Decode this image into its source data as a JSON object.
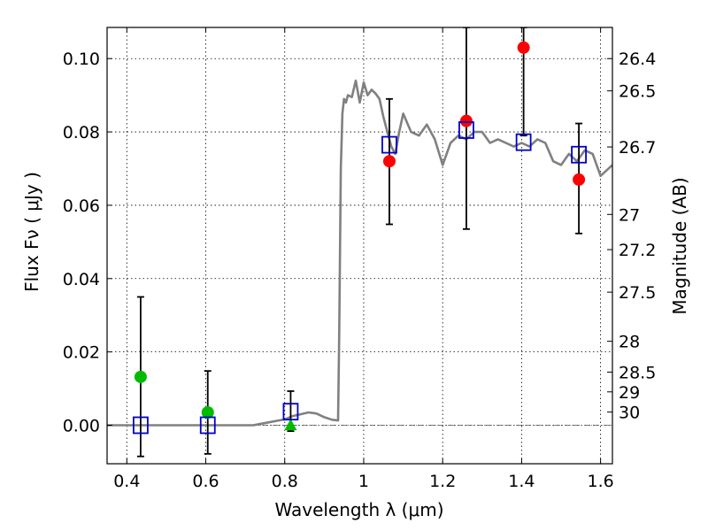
{
  "chart_data": {
    "type": "scatter",
    "xlabel": "Wavelength  λ (μm)",
    "ylabel": "Flux  Fν  ( μJy )",
    "y2label": "Magnitude (AB)",
    "xlim": [
      0.35,
      1.63
    ],
    "ylim": [
      -0.0105,
      0.1085
    ],
    "xticks": [
      0.4,
      0.6,
      0.8,
      1.0,
      1.2,
      1.4,
      1.6
    ],
    "xtick_labels": [
      "0.4",
      "0.6",
      "0.8",
      "1",
      "1.2",
      "1.4",
      "1.6"
    ],
    "yticks": [
      0.0,
      0.02,
      0.04,
      0.06,
      0.08,
      0.1
    ],
    "ytick_labels": [
      "0.00",
      "0.02",
      "0.04",
      "0.06",
      "0.08",
      "0.10"
    ],
    "y2ticks": [
      {
        "label": "26.4",
        "flux": 0.1
      },
      {
        "label": "26.5",
        "flux": 0.0912
      },
      {
        "label": "26.7",
        "flux": 0.0759
      },
      {
        "label": "27",
        "flux": 0.0575
      },
      {
        "label": "27.2",
        "flux": 0.0479
      },
      {
        "label": "27.5",
        "flux": 0.0363
      },
      {
        "label": "28",
        "flux": 0.0229
      },
      {
        "label": "28.5",
        "flux": 0.0145
      },
      {
        "label": "29",
        "flux": 0.0091
      },
      {
        "label": "30",
        "flux": 0.0036
      }
    ],
    "grid": true,
    "model_spectrum": {
      "color": "#808080",
      "x": [
        0.35,
        0.72,
        0.74,
        0.76,
        0.78,
        0.8,
        0.82,
        0.84,
        0.86,
        0.88,
        0.9,
        0.92,
        0.935,
        0.938,
        0.942,
        0.946,
        0.95,
        0.955,
        0.96,
        0.97,
        0.98,
        0.99,
        1.0,
        1.01,
        1.02,
        1.03,
        1.04,
        1.05,
        1.06,
        1.07,
        1.08,
        1.09,
        1.1,
        1.12,
        1.14,
        1.16,
        1.18,
        1.2,
        1.22,
        1.24,
        1.26,
        1.28,
        1.3,
        1.32,
        1.34,
        1.36,
        1.38,
        1.4,
        1.42,
        1.44,
        1.46,
        1.48,
        1.5,
        1.52,
        1.54,
        1.56,
        1.58,
        1.6,
        1.63
      ],
      "y": [
        0.0,
        0.0,
        0.0004,
        0.0008,
        0.0012,
        0.0016,
        0.0025,
        0.003,
        0.0035,
        0.0032,
        0.0022,
        0.0015,
        0.0013,
        0.025,
        0.07,
        0.085,
        0.089,
        0.088,
        0.09,
        0.0895,
        0.094,
        0.088,
        0.0935,
        0.09,
        0.0915,
        0.0905,
        0.089,
        0.084,
        0.08,
        0.076,
        0.074,
        0.08,
        0.085,
        0.08,
        0.079,
        0.082,
        0.078,
        0.071,
        0.077,
        0.079,
        0.078,
        0.08,
        0.08,
        0.077,
        0.078,
        0.077,
        0.076,
        0.077,
        0.076,
        0.078,
        0.077,
        0.072,
        0.071,
        0.074,
        0.072,
        0.075,
        0.074,
        0.068,
        0.071
      ]
    },
    "series": [
      {
        "name": "observed_red",
        "marker": "circle",
        "color": "#ff0000",
        "x": [
          1.065,
          1.26,
          1.405,
          1.545
        ],
        "y": [
          0.072,
          0.083,
          0.103,
          0.067
        ]
      },
      {
        "name": "observed_green",
        "marker": "circle",
        "color": "#00bb00",
        "x": [
          0.435,
          0.605
        ],
        "y": [
          0.0132,
          0.0035
        ]
      },
      {
        "name": "upper_limit",
        "marker": "triangle",
        "color": "#00bb00",
        "x": [
          0.815
        ],
        "y": [
          0.0001
        ]
      },
      {
        "name": "model_photometry",
        "marker": "square",
        "color": "#0000cc",
        "x": [
          0.435,
          0.605,
          0.815,
          1.065,
          1.26,
          1.405,
          1.545
        ],
        "y": [
          0.0,
          0.0,
          0.0037,
          0.0765,
          0.0805,
          0.0772,
          0.0738
        ]
      }
    ],
    "error_bars": [
      {
        "x": 0.435,
        "low": -0.0085,
        "high": 0.035
      },
      {
        "x": 0.605,
        "low": -0.0078,
        "high": 0.0148
      },
      {
        "x": 0.815,
        "low": -0.0016,
        "high": 0.0093
      },
      {
        "x": 1.065,
        "low": 0.0548,
        "high": 0.089
      },
      {
        "x": 1.26,
        "low": 0.0535,
        "high": 0.1085
      },
      {
        "x": 1.405,
        "low": 0.079,
        "high": 0.1085
      },
      {
        "x": 1.545,
        "low": 0.0523,
        "high": 0.0823
      }
    ]
  }
}
